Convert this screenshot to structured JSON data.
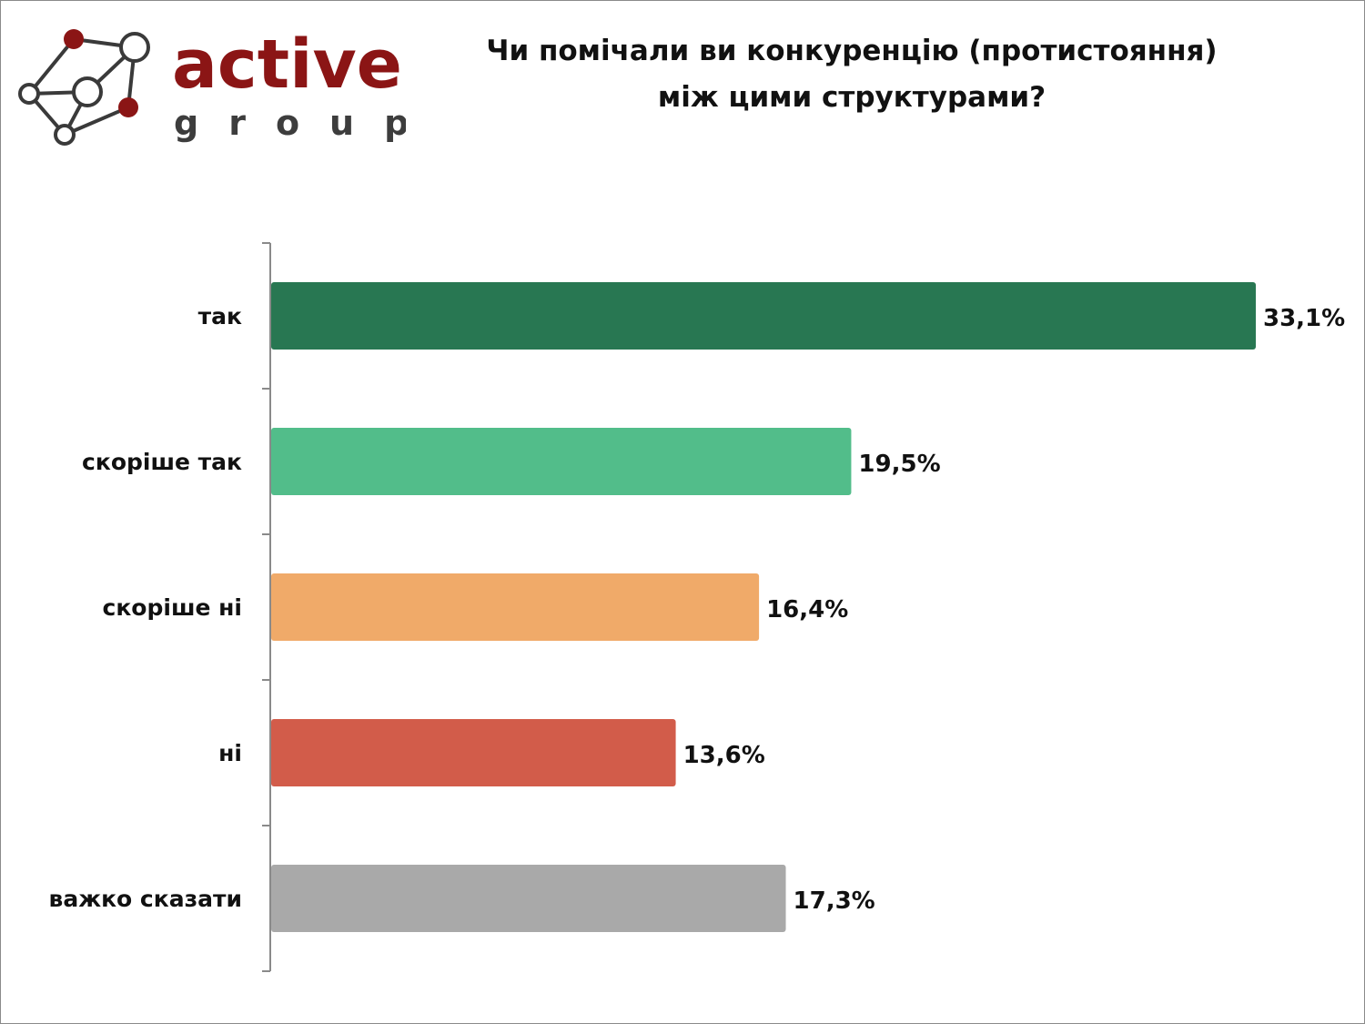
{
  "logo": {
    "brand": "active",
    "sub": "group",
    "color": "#8b1515"
  },
  "chart_data": {
    "type": "bar",
    "orientation": "horizontal",
    "title": "Чи помічали ви конкуренцію (протистояння) між цими структурами?",
    "title_lines": [
      "Чи помічали ви конкуренцію (протистояння)",
      "між цими структурами?"
    ],
    "categories": [
      "так",
      "скоріше так",
      "скоріше ні",
      "ні",
      "важко сказати"
    ],
    "values": [
      33.1,
      19.5,
      16.4,
      13.6,
      17.3
    ],
    "labels": [
      "33,1%",
      "19,5%",
      "16,4%",
      "13,6%",
      "17,3%"
    ],
    "colors": [
      "#287752",
      "#52bd8a",
      "#f0aa69",
      "#d25c4a",
      "#a9a9a9"
    ],
    "xlim": [
      0,
      33.1
    ],
    "grid": false,
    "legend": "none"
  }
}
